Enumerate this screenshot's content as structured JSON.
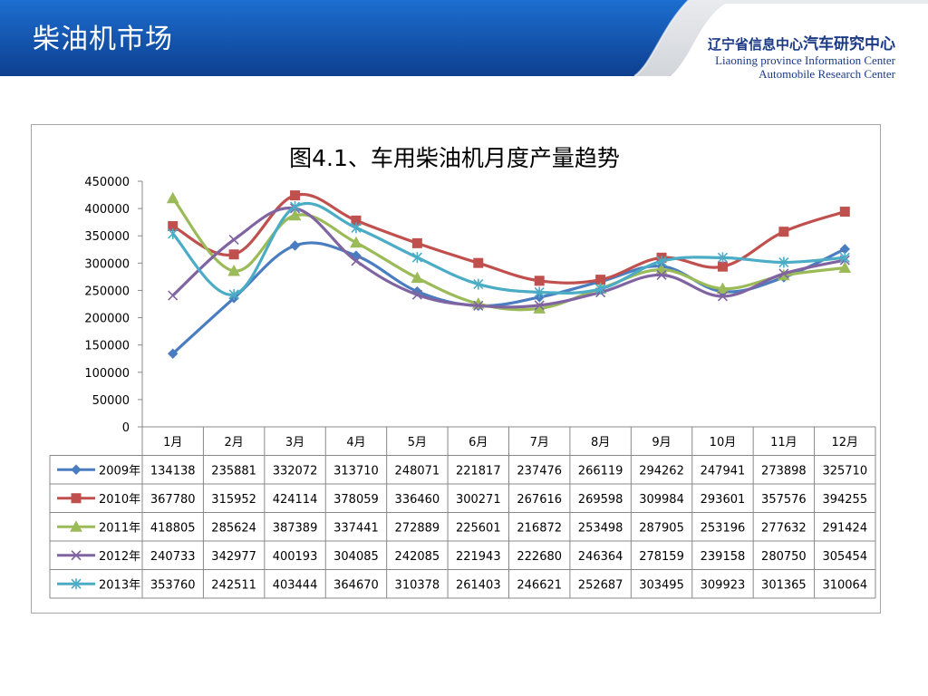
{
  "slide": {
    "title": "柴油机市场"
  },
  "organization": {
    "name_cn_prefix": "辽宁省信息中心",
    "name_cn_highlight": "汽车研究中心",
    "name_en_line1": "Liaoning province Information Center",
    "name_en_line2": "Automobile Research Center"
  },
  "colors": {
    "banner_dark": "#0d3f8f",
    "banner_light": "#1c6ed0",
    "org_text": "#1b3a86"
  },
  "chart_data": {
    "type": "line",
    "title": "图4.1、车用柴油机月度产量趋势",
    "categories": [
      "1月",
      "2月",
      "3月",
      "4月",
      "5月",
      "6月",
      "7月",
      "8月",
      "9月",
      "10月",
      "11月",
      "12月"
    ],
    "ylim": [
      0,
      450000
    ],
    "yticks": [
      0,
      50000,
      100000,
      150000,
      200000,
      250000,
      300000,
      350000,
      400000,
      450000
    ],
    "grid": false,
    "data_table": true,
    "series": [
      {
        "name": "2009年",
        "color": "#4a7cc0",
        "marker": "diamond",
        "values": [
          134138,
          235881,
          332072,
          313710,
          248071,
          221817,
          237476,
          266119,
          294262,
          247941,
          273898,
          325710
        ]
      },
      {
        "name": "2010年",
        "color": "#c0504d",
        "marker": "square",
        "values": [
          367780,
          315952,
          424114,
          378059,
          336460,
          300271,
          267616,
          269598,
          309984,
          293601,
          357576,
          394255
        ]
      },
      {
        "name": "2011年",
        "color": "#9bbb59",
        "marker": "triangle",
        "values": [
          418805,
          285624,
          387389,
          337441,
          272889,
          225601,
          216872,
          253498,
          287905,
          253196,
          277632,
          291424
        ]
      },
      {
        "name": "2012年",
        "color": "#8064a2",
        "marker": "x",
        "values": [
          240733,
          342977,
          400193,
          304085,
          242085,
          221943,
          222680,
          246364,
          278159,
          239158,
          280750,
          305454
        ]
      },
      {
        "name": "2013年",
        "color": "#4bacc6",
        "marker": "star",
        "values": [
          353760,
          242511,
          403444,
          364670,
          310378,
          261403,
          246621,
          252687,
          303495,
          309923,
          301365,
          310064
        ]
      }
    ]
  }
}
